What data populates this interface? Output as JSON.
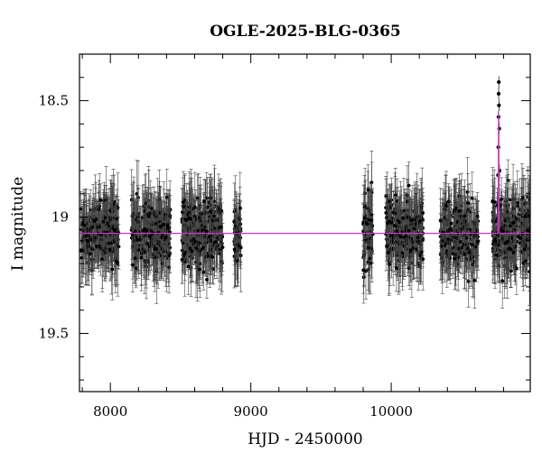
{
  "chart_data": {
    "type": "scatter",
    "title": "OGLE-2025-BLG-0365",
    "xlabel": "HJD - 2450000",
    "ylabel": "I magnitude",
    "xlim": [
      7780,
      10990
    ],
    "ylim": [
      19.75,
      18.3
    ],
    "y_inverted": true,
    "x_ticks": [
      8000,
      9000,
      10000
    ],
    "x_tick_labels": [
      "8000",
      "9000",
      "10000"
    ],
    "y_ticks": [
      18.5,
      19,
      19.5
    ],
    "y_tick_labels": [
      "18.5",
      "19",
      "19.5"
    ],
    "grid": false,
    "colors": {
      "points": "#000000",
      "errorbars": "#444444",
      "model": "#cc33cc"
    },
    "baseline_magnitude": 19.07,
    "seasons": [
      {
        "start": 7790,
        "end": 8060,
        "mean_mag": 19.07,
        "spread": 0.3
      },
      {
        "start": 8150,
        "end": 8430,
        "mean_mag": 19.07,
        "spread": 0.32
      },
      {
        "start": 8510,
        "end": 8800,
        "mean_mag": 19.07,
        "spread": 0.32
      },
      {
        "start": 8880,
        "end": 8930,
        "mean_mag": 19.07,
        "spread": 0.3
      },
      {
        "start": 9800,
        "end": 9870,
        "mean_mag": 19.07,
        "spread": 0.42
      },
      {
        "start": 9960,
        "end": 10230,
        "mean_mag": 19.07,
        "spread": 0.32
      },
      {
        "start": 10350,
        "end": 10620,
        "mean_mag": 19.07,
        "spread": 0.32
      },
      {
        "start": 10720,
        "end": 10990,
        "mean_mag": 19.07,
        "spread": 0.34
      }
    ],
    "event": {
      "t0": 10765,
      "peak_mag": 18.45,
      "points": [
        {
          "x": 10758,
          "y": 18.95
        },
        {
          "x": 10761,
          "y": 18.82
        },
        {
          "x": 10763,
          "y": 18.7
        },
        {
          "x": 10764,
          "y": 18.57
        },
        {
          "x": 10765,
          "y": 18.47
        },
        {
          "x": 10766,
          "y": 18.42
        },
        {
          "x": 10767,
          "y": 18.52
        },
        {
          "x": 10769,
          "y": 18.62
        },
        {
          "x": 10771,
          "y": 18.8
        },
        {
          "x": 10774,
          "y": 18.95
        }
      ]
    }
  }
}
